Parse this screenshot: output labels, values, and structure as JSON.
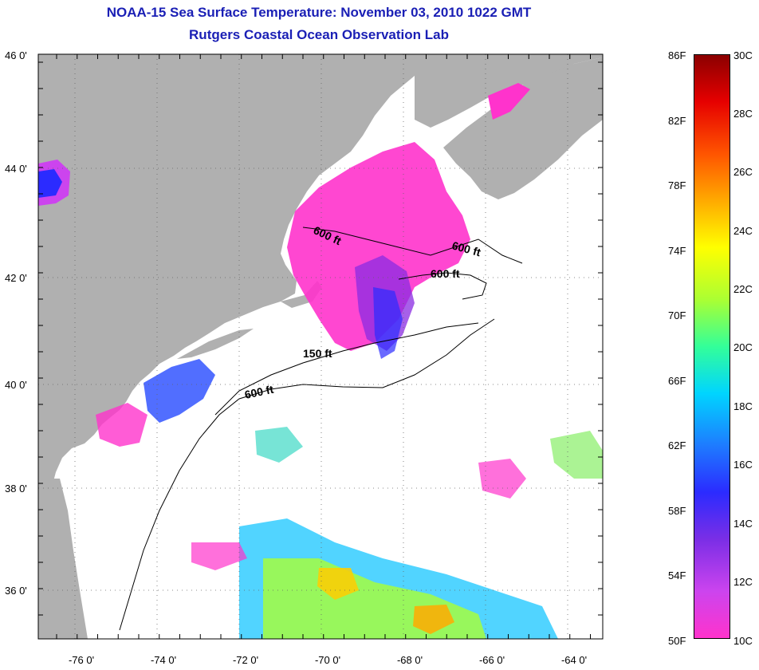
{
  "header": {
    "title": "NOAA-15 Sea Surface Temperature:  November 03, 2010 1022 GMT",
    "subtitle": "Rutgers Coastal Ocean Observation Lab"
  },
  "map": {
    "lat_labels": [
      "46 0'",
      "44 0'",
      "42 0'",
      "40 0'",
      "38 0'",
      "36 0'"
    ],
    "lon_labels": [
      "-76 0'",
      "-74 0'",
      "-72 0'",
      "-70 0'",
      "-68 0'",
      "-66 0'",
      "-64 0'"
    ],
    "contour_labels": [
      "600 ft",
      "600 ft",
      "600 ft",
      "150 ft",
      "600 ft"
    ],
    "colors": {
      "land": "#b0b0b0",
      "ocean": "#ffffff",
      "frame": "#000000"
    }
  },
  "colorbar": {
    "f_labels": [
      "86F",
      "82F",
      "78F",
      "74F",
      "70F",
      "66F",
      "62F",
      "58F",
      "54F",
      "50F"
    ],
    "c_labels": [
      "30C",
      "28C",
      "26C",
      "24C",
      "22C",
      "20C",
      "18C",
      "16C",
      "14C",
      "12C",
      "10C"
    ],
    "colors": [
      "#ff33cc",
      "#cc44ee",
      "#7a2ee6",
      "#2b2bff",
      "#1e7bff",
      "#00d5ff",
      "#33ff99",
      "#aaff33",
      "#ffff00",
      "#ffaa00",
      "#ff5500",
      "#e60000",
      "#8b0000"
    ]
  }
}
